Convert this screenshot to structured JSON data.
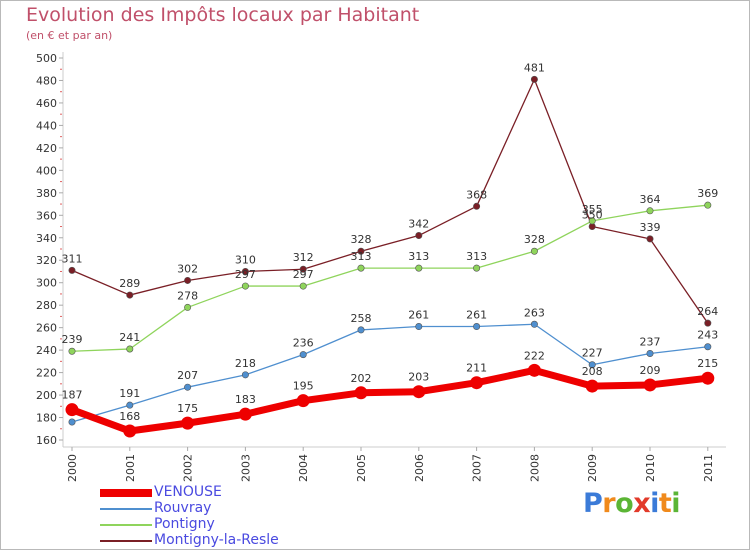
{
  "header": {
    "title": "Evolution des Impôts locaux par Habitant",
    "subtitle": "(en € et par an)"
  },
  "logo": {
    "text": "Proxiti",
    "colors": [
      "#3b7bd8",
      "#f08a1c",
      "#5bb535",
      "#e23a2a",
      "#3b7bd8",
      "#f08a1c",
      "#5bb535"
    ]
  },
  "chart_data": {
    "type": "line",
    "title": "Evolution des Impôts locaux par Habitant",
    "subtitle": "(en € et par an)",
    "x": [
      "2000",
      "2001",
      "2002",
      "2003",
      "2004",
      "2005",
      "2006",
      "2007",
      "2008",
      "2009",
      "2010",
      "2011"
    ],
    "ylim": [
      160,
      500
    ],
    "yticks": [
      160,
      180,
      200,
      220,
      240,
      260,
      280,
      300,
      320,
      340,
      360,
      380,
      400,
      420,
      440,
      460,
      480,
      500
    ],
    "grid": false,
    "legend_position": "bottom-left",
    "series": [
      {
        "name": "Montigny-la-Resle",
        "color": "#7a1f26",
        "values": [
          311,
          289,
          302,
          310,
          312,
          328,
          342,
          368,
          481,
          350,
          339,
          264
        ],
        "labels": [
          "311",
          "289",
          "302",
          "310",
          "312",
          "328",
          "342",
          "368",
          "481",
          "350",
          "339",
          "264"
        ]
      },
      {
        "name": "Pontigny",
        "color": "#8fd45c",
        "values": [
          239,
          241,
          278,
          297,
          297,
          313,
          313,
          313,
          328,
          355,
          364,
          369
        ],
        "labels": [
          "239",
          "241",
          "278",
          "297",
          "297",
          "313",
          "313",
          "313",
          "328",
          "355",
          "364",
          "369"
        ]
      },
      {
        "name": "Rouvray",
        "color": "#4f8fcf",
        "values": [
          176,
          191,
          207,
          218,
          236,
          258,
          261,
          261,
          263,
          227,
          237,
          243
        ],
        "labels": [
          "",
          "191",
          "207",
          "218",
          "236",
          "258",
          "261",
          "261",
          "263",
          "227",
          "237",
          "243"
        ]
      },
      {
        "name": "VENOUSE",
        "color": "#ee0000",
        "values": [
          187,
          168,
          175,
          183,
          195,
          202,
          203,
          211,
          222,
          208,
          209,
          215
        ],
        "labels": [
          "187",
          "168",
          "175",
          "183",
          "195",
          "202",
          "203",
          "211",
          "222",
          "208",
          "209",
          "215"
        ]
      }
    ],
    "legend": [
      {
        "name": "VENOUSE",
        "color": "#ee0000",
        "label_color": "#4a4ae0"
      },
      {
        "name": "Rouvray",
        "color": "#4f8fcf",
        "label_color": "#4a4ae0"
      },
      {
        "name": "Pontigny",
        "color": "#8fd45c",
        "label_color": "#4a4ae0"
      },
      {
        "name": "Montigny-la-Resle",
        "color": "#7a1f26",
        "label_color": "#4a4ae0"
      }
    ]
  }
}
